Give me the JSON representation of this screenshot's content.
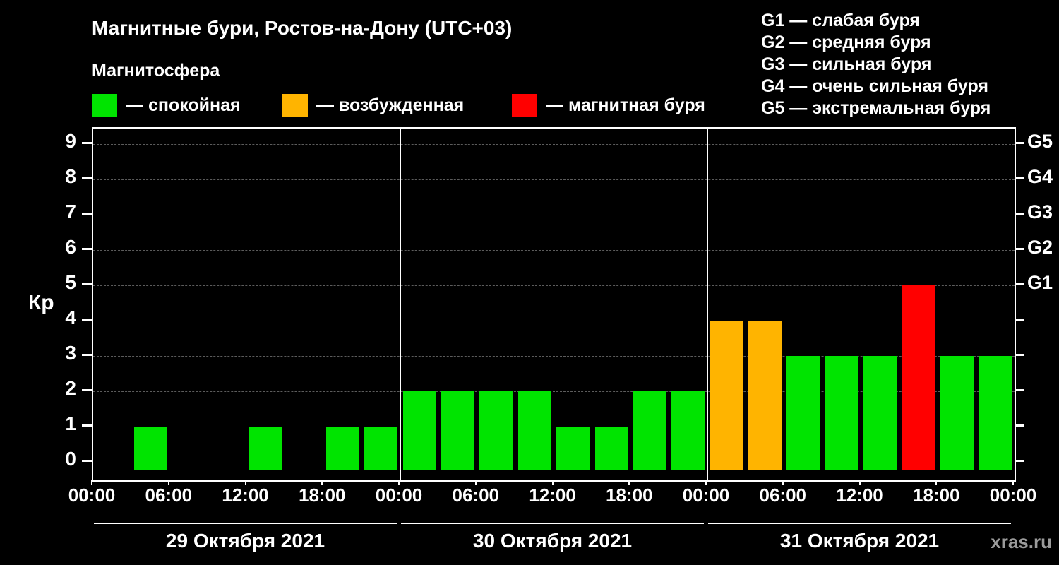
{
  "title": "Магнитные бури, Ростов-на-Дону (UTC+03)",
  "subtitle": "Магнитосфера",
  "legend": {
    "items": [
      {
        "label": "— спокойная",
        "color": "#00e400",
        "meaning": "quiet"
      },
      {
        "label": "— возбужденная",
        "color": "#ffb400",
        "meaning": "excited"
      },
      {
        "label": "— магнитная буря",
        "color": "#ff0000",
        "meaning": "storm"
      }
    ]
  },
  "storm_scale": [
    "G1 — слабая буря",
    "G2 — средняя буря",
    "G3 — сильная буря",
    "G4 — очень сильная буря",
    "G5 — экстремальная буря"
  ],
  "watermark": "xras.ru",
  "chart_data": {
    "type": "bar",
    "title": "Магнитные бури, Ростов-на-Дону (UTC+03)",
    "ylabel": "Кр",
    "ylim": [
      0,
      9
    ],
    "yticks": [
      0,
      1,
      2,
      3,
      4,
      5,
      6,
      7,
      8,
      9
    ],
    "grid": true,
    "interval_hours": 3,
    "x_tick_labels": [
      "00:00",
      "06:00",
      "12:00",
      "18:00"
    ],
    "x_end_label": "00:00",
    "right_axis": [
      {
        "kp": 5,
        "label": "G1"
      },
      {
        "kp": 6,
        "label": "G2"
      },
      {
        "kp": 7,
        "label": "G3"
      },
      {
        "kp": 8,
        "label": "G4"
      },
      {
        "kp": 9,
        "label": "G5"
      }
    ],
    "colors": {
      "quiet": "#00e400",
      "excited": "#ffb400",
      "storm": "#ff0000"
    },
    "color_rules": {
      "excited_min_kp": 4,
      "storm_min_kp": 5
    },
    "days": [
      {
        "date": "29 Октября 2021",
        "values": [
          0,
          1,
          0,
          0,
          1,
          0,
          1,
          1
        ]
      },
      {
        "date": "30 Октября 2021",
        "values": [
          2,
          2,
          2,
          2,
          1,
          1,
          2,
          2
        ]
      },
      {
        "date": "31 Октября 2021",
        "values": [
          4,
          4,
          3,
          3,
          3,
          5,
          3,
          3
        ]
      }
    ],
    "legend_position": "top-left"
  }
}
